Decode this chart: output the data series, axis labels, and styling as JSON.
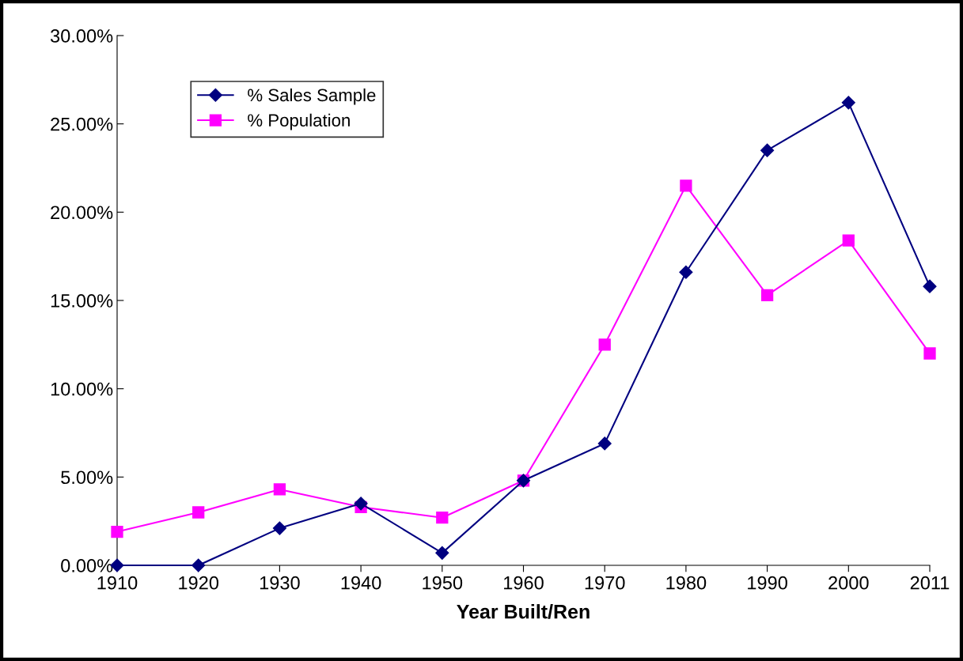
{
  "chart_data": {
    "type": "line",
    "xlabel": "Year Built/Ren",
    "categories": [
      "1910",
      "1920",
      "1930",
      "1940",
      "1950",
      "1960",
      "1970",
      "1980",
      "1990",
      "2000",
      "2011"
    ],
    "series": [
      {
        "name": "% Sales Sample",
        "color": "#000080",
        "marker": "diamond",
        "values": [
          0,
          0,
          2.1,
          3.5,
          0.7,
          4.8,
          6.9,
          16.6,
          23.5,
          26.2,
          15.8
        ]
      },
      {
        "name": "% Population",
        "color": "#ff00ff",
        "marker": "square",
        "values": [
          1.9,
          3.0,
          4.3,
          3.3,
          2.7,
          4.8,
          12.5,
          21.5,
          15.3,
          18.4,
          12.0
        ]
      }
    ],
    "ylim": [
      0,
      30
    ],
    "yticks": [
      {
        "value": 0,
        "label": "0.00%"
      },
      {
        "value": 5,
        "label": "5.00%"
      },
      {
        "value": 10,
        "label": "10.00%"
      },
      {
        "value": 15,
        "label": "15.00%"
      },
      {
        "value": 20,
        "label": "20.00%"
      },
      {
        "value": 25,
        "label": "25.00%"
      },
      {
        "value": 30,
        "label": "30.00%"
      }
    ],
    "grid": false,
    "legend": "top left",
    "line_style": "solid"
  }
}
